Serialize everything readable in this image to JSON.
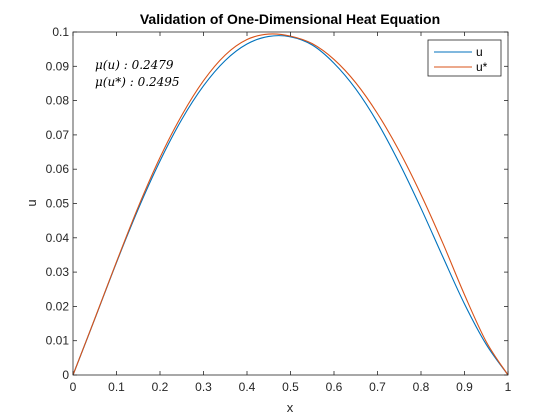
{
  "chart_data": {
    "type": "line",
    "title": "Validation of One-Dimensional Heat Equation",
    "xlabel": "x",
    "ylabel": "u",
    "xlim": [
      0,
      1
    ],
    "ylim": [
      0,
      0.1
    ],
    "xticks": [
      "0",
      "0.1",
      "0.2",
      "0.3",
      "0.4",
      "0.5",
      "0.6",
      "0.7",
      "0.8",
      "0.9",
      "1"
    ],
    "yticks": [
      "0",
      "0.01",
      "0.02",
      "0.03",
      "0.04",
      "0.05",
      "0.06",
      "0.07",
      "0.08",
      "0.09",
      "0.1"
    ],
    "grid": false,
    "legend_position": "top-right",
    "annotations": [
      "μ(u) : 0.2479",
      "μ(u*) : 0.2495"
    ],
    "x": [
      0,
      0.05,
      0.1,
      0.15,
      0.2,
      0.25,
      0.3,
      0.35,
      0.4,
      0.45,
      0.5,
      0.55,
      0.6,
      0.65,
      0.7,
      0.75,
      0.8,
      0.85,
      0.9,
      0.95,
      1
    ],
    "series": [
      {
        "name": "u",
        "color": "#0072BD",
        "values": [
          0,
          0.0163,
          0.0328,
          0.0484,
          0.0624,
          0.0745,
          0.0843,
          0.0917,
          0.0965,
          0.0987,
          0.0986,
          0.0962,
          0.0909,
          0.0834,
          0.0736,
          0.0618,
          0.0486,
          0.0345,
          0.0207,
          0.0089,
          0
        ]
      },
      {
        "name": "u*",
        "color": "#D95319",
        "values": [
          0,
          0.0164,
          0.033,
          0.049,
          0.0634,
          0.0757,
          0.0858,
          0.0933,
          0.0978,
          0.0994,
          0.0988,
          0.0966,
          0.092,
          0.0852,
          0.0762,
          0.0653,
          0.0526,
          0.0385,
          0.0234,
          0.0097,
          0
        ]
      }
    ]
  }
}
